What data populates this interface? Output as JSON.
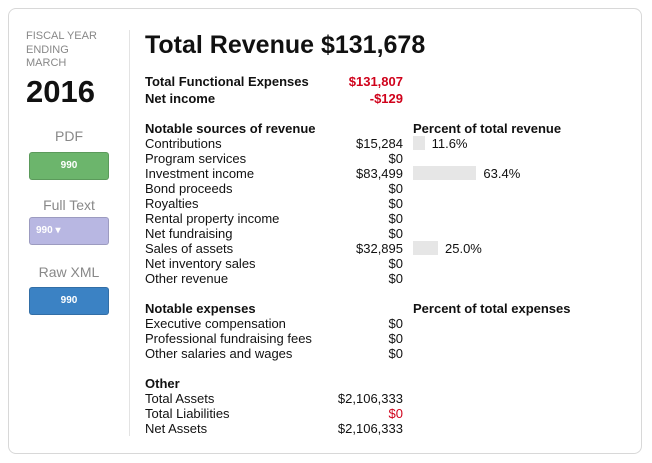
{
  "sidebar": {
    "fiscal_label": "FISCAL YEAR ENDING MARCH",
    "year": "2016",
    "links": [
      {
        "label": "PDF",
        "button": "990",
        "color": "#6cb56c"
      },
      {
        "label": "Full Text",
        "button": "990",
        "color": "#b8b7e2"
      },
      {
        "label": "Raw XML",
        "button": "990",
        "color": "#3b82c4"
      }
    ]
  },
  "header": {
    "title": "Total Revenue $131,678"
  },
  "summary": [
    {
      "label": "Total Functional Expenses",
      "value": "$131,807",
      "color": "#d0021b"
    },
    {
      "label": "Net income",
      "value": "-$129",
      "color": "#d0021b"
    }
  ],
  "revenue": {
    "heading": "Notable sources of revenue",
    "percent_heading": "Percent of total revenue",
    "rows": [
      {
        "label": "Contributions",
        "value": "$15,284",
        "percent": 11.6,
        "percent_label": "11.6%"
      },
      {
        "label": "Program services",
        "value": "$0"
      },
      {
        "label": "Investment income",
        "value": "$83,499",
        "percent": 63.4,
        "percent_label": "63.4%"
      },
      {
        "label": "Bond proceeds",
        "value": "$0"
      },
      {
        "label": "Royalties",
        "value": "$0"
      },
      {
        "label": "Rental property income",
        "value": "$0"
      },
      {
        "label": "Net fundraising",
        "value": "$0"
      },
      {
        "label": "Sales of assets",
        "value": "$32,895",
        "percent": 25.0,
        "percent_label": "25.0%"
      },
      {
        "label": "Net inventory sales",
        "value": "$0"
      },
      {
        "label": "Other revenue",
        "value": "$0"
      }
    ]
  },
  "expenses": {
    "heading": "Notable expenses",
    "percent_heading": "Percent of total expenses",
    "rows": [
      {
        "label": "Executive compensation",
        "value": "$0"
      },
      {
        "label": "Professional fundraising fees",
        "value": "$0"
      },
      {
        "label": "Other salaries and wages",
        "value": "$0"
      }
    ]
  },
  "other": {
    "heading": "Other",
    "rows": [
      {
        "label": "Total Assets",
        "value": "$2,106,333"
      },
      {
        "label": "Total Liabilities",
        "value": "$0",
        "color": "#d0021b"
      },
      {
        "label": "Net Assets",
        "value": "$2,106,333"
      }
    ]
  }
}
